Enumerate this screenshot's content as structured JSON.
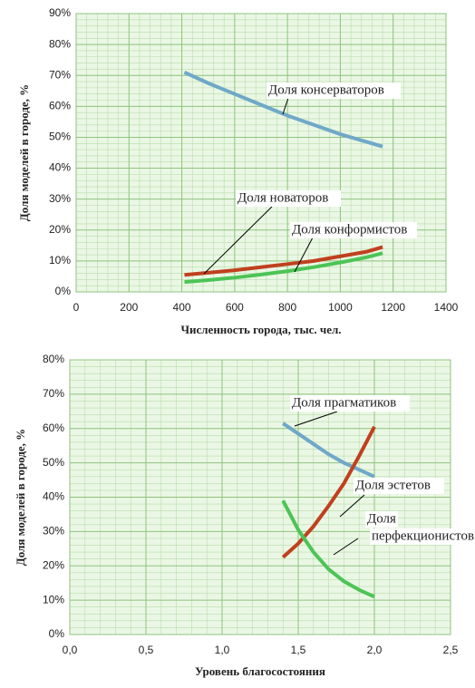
{
  "chart_data": [
    {
      "type": "line",
      "xlabel": "Численность города, тыс. чел.",
      "ylabel": "Доля моделей в городе, %",
      "x": [
        410,
        500,
        600,
        700,
        800,
        900,
        1000,
        1100,
        1160
      ],
      "series": [
        {
          "name": "Доля консерваторов",
          "color": "#6fa8c8",
          "values": [
            71,
            67.5,
            64,
            60.5,
            57,
            54,
            51,
            48.5,
            47
          ]
        },
        {
          "name": "Доля новаторов",
          "color": "#c0401e",
          "values": [
            5.5,
            6.2,
            7,
            8,
            9,
            10,
            11.5,
            13,
            14.5
          ]
        },
        {
          "name": "Доля конформистов",
          "color": "#4cc456",
          "values": [
            3.2,
            3.8,
            4.6,
            5.6,
            6.7,
            8,
            9.5,
            11.2,
            12.5
          ]
        }
      ],
      "xlim": [
        0,
        1400
      ],
      "xticks": [
        0,
        200,
        400,
        600,
        800,
        1000,
        1200,
        1400
      ],
      "ylim": [
        0,
        90
      ],
      "yticks": [
        {
          "value": 0,
          "label": "0%"
        },
        {
          "value": 10,
          "label": "10%"
        },
        {
          "value": 20,
          "label": "20%"
        },
        {
          "value": 30,
          "label": "30%"
        },
        {
          "value": 40,
          "label": "40%"
        },
        {
          "value": 50,
          "label": "50%"
        },
        {
          "value": 60,
          "label": "60%"
        },
        {
          "value": 70,
          "label": "70%"
        },
        {
          "value": 80,
          "label": "80%"
        },
        {
          "value": 90,
          "label": "90%"
        }
      ],
      "grid": true
    },
    {
      "type": "line",
      "xlabel": "Уровень благосостояния",
      "ylabel": "Доля моделей в городе, %",
      "x": [
        1.4,
        1.5,
        1.6,
        1.7,
        1.8,
        1.9,
        2.0
      ],
      "series": [
        {
          "name": "Доля прагматиков",
          "color": "#6fa8c8",
          "values": [
            61.5,
            58.5,
            55.5,
            52.5,
            50,
            48,
            46
          ]
        },
        {
          "name": "Доля эстетов",
          "color": "#c0401e",
          "values": [
            22.5,
            26.5,
            31.5,
            37.5,
            44,
            52,
            60.5
          ]
        },
        {
          "name": [
            "Доля",
            "перфекционистов"
          ],
          "color": "#4cc456",
          "values": [
            39,
            30.5,
            24,
            19,
            15.5,
            13,
            11
          ]
        }
      ],
      "xlim": [
        0,
        2.5
      ],
      "xticks": [
        {
          "value": 0,
          "label": "0,0"
        },
        {
          "value": 0.5,
          "label": "0,5"
        },
        {
          "value": 1,
          "label": "1,0"
        },
        {
          "value": 1.5,
          "label": "1,5"
        },
        {
          "value": 2,
          "label": "2,0"
        },
        {
          "value": 2.5,
          "label": "2,5"
        }
      ],
      "ylim": [
        0,
        80
      ],
      "yticks": [
        {
          "value": 0,
          "label": "0%"
        },
        {
          "value": 10,
          "label": "10%"
        },
        {
          "value": 20,
          "label": "20%"
        },
        {
          "value": 30,
          "label": "30%"
        },
        {
          "value": 40,
          "label": "40%"
        },
        {
          "value": 50,
          "label": "50%"
        },
        {
          "value": 60,
          "label": "60%"
        },
        {
          "value": 70,
          "label": "70%"
        },
        {
          "value": 80,
          "label": "80%"
        }
      ],
      "grid": true
    }
  ]
}
